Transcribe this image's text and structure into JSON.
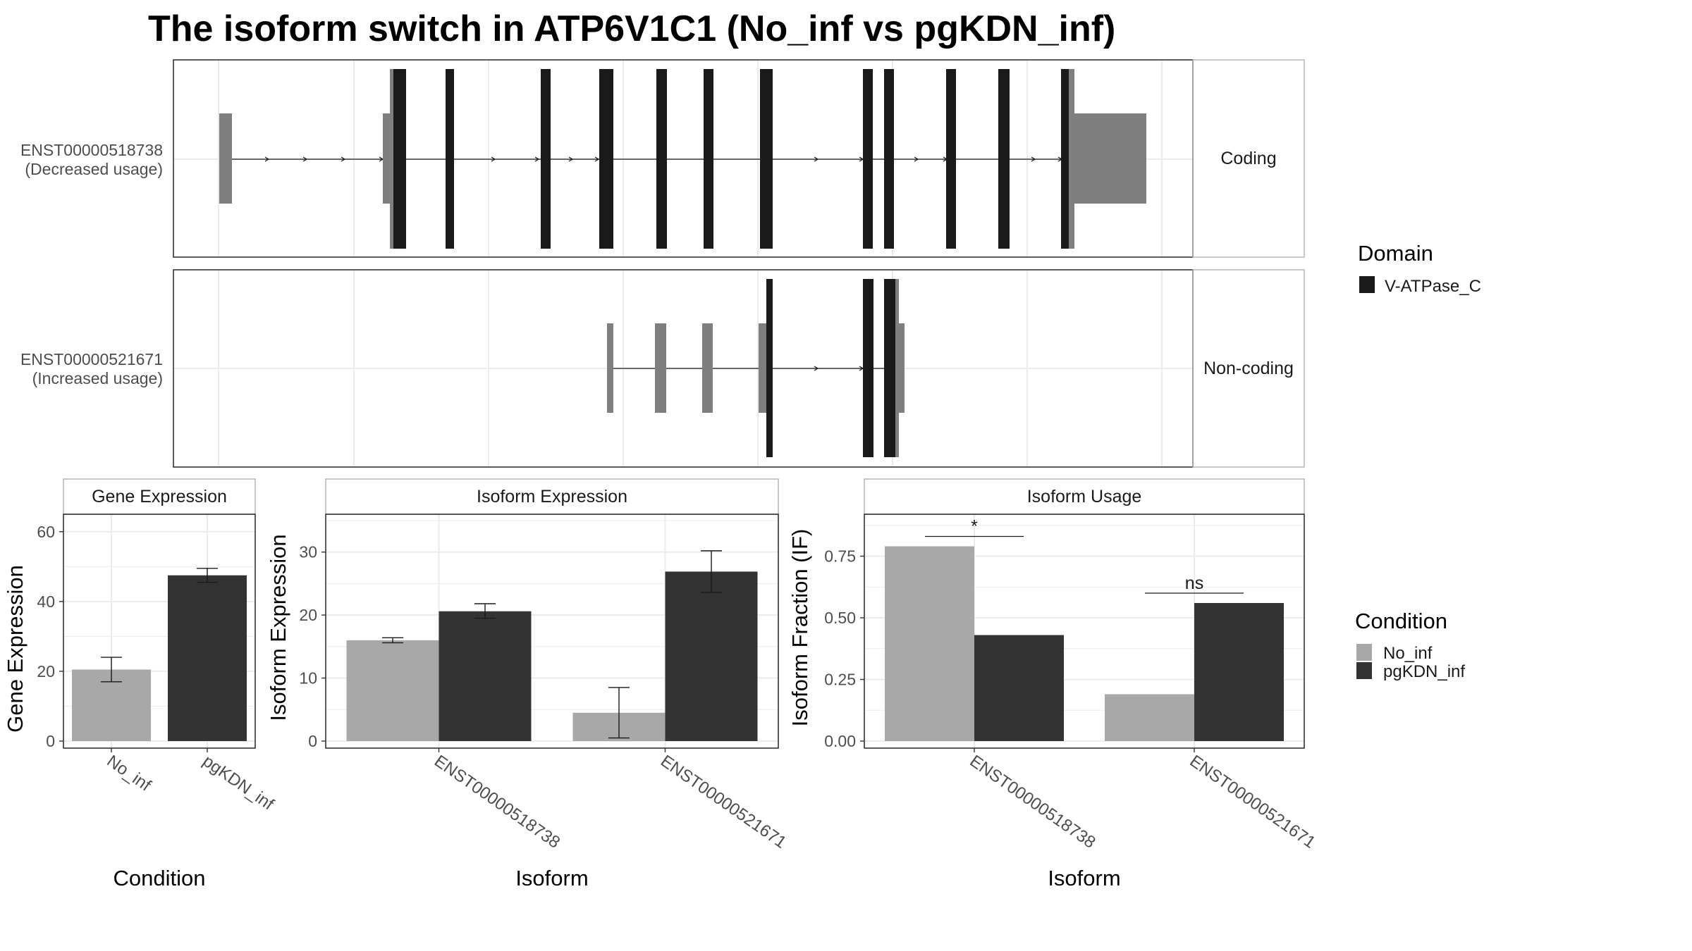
{
  "title": "The isoform switch in ATP6V1C1 (No_inf vs pgKDN_inf)",
  "colors": {
    "domain": "#1a1a1a",
    "utr": "#7f7f7f",
    "no_inf": "#a8a8a8",
    "pgkdn_inf": "#333333",
    "grid": "#ebebeb",
    "panel_border": "#333333",
    "strip_border": "#b0b0b0"
  },
  "transcripts": [
    {
      "id": "ENST00000518738",
      "label_line1": "ENST00000518738",
      "label_line2": "(Decreased usage)",
      "facet": "Coding"
    },
    {
      "id": "ENST00000521671",
      "label_line1": "ENST00000521671",
      "label_line2": "(Increased usage)",
      "facet": "Non-coding"
    }
  ],
  "domain_legend": {
    "title": "Domain",
    "items": [
      {
        "label": "V-ATPase_C"
      }
    ]
  },
  "condition_legend": {
    "title": "Condition",
    "items": [
      {
        "label": "No_inf"
      },
      {
        "label": "pgKDN_inf"
      }
    ]
  },
  "chart_data": [
    {
      "type": "bar",
      "panel": "Gene Expression",
      "xlabel": "Condition",
      "ylabel": "Gene Expression",
      "ylim": [
        0,
        65
      ],
      "yticks": [
        0,
        20,
        40,
        60
      ],
      "categories": [
        "No_inf",
        "pgKDN_inf"
      ],
      "values": [
        20.5,
        47.5
      ],
      "error_low": [
        17.0,
        45.5
      ],
      "error_high": [
        24.0,
        49.5
      ]
    },
    {
      "type": "bar",
      "panel": "Isoform Expression",
      "xlabel": "Isoform",
      "ylabel": "Isoform Expression",
      "ylim": [
        0,
        36
      ],
      "yticks": [
        0,
        10,
        20,
        30
      ],
      "categories": [
        "ENST00000518738",
        "ENST00000521671"
      ],
      "series": [
        {
          "name": "No_inf",
          "values": [
            16.0,
            4.5
          ],
          "error_low": [
            15.6,
            0.5
          ],
          "error_high": [
            16.4,
            8.5
          ]
        },
        {
          "name": "pgKDN_inf",
          "values": [
            20.6,
            26.9
          ],
          "error_low": [
            19.5,
            23.6
          ],
          "error_high": [
            21.8,
            30.2
          ]
        }
      ]
    },
    {
      "type": "bar",
      "panel": "Isoform Usage",
      "xlabel": "Isoform",
      "ylabel": "Isoform Fraction (IF)",
      "ylim": [
        0,
        0.92
      ],
      "yticks": [
        "0.00",
        "0.25",
        "0.50",
        "0.75"
      ],
      "categories": [
        "ENST00000518738",
        "ENST00000521671"
      ],
      "series": [
        {
          "name": "No_inf",
          "values": [
            0.79,
            0.19
          ]
        },
        {
          "name": "pgKDN_inf",
          "values": [
            0.43,
            0.56
          ]
        }
      ],
      "significance": [
        "*",
        "ns"
      ]
    }
  ]
}
